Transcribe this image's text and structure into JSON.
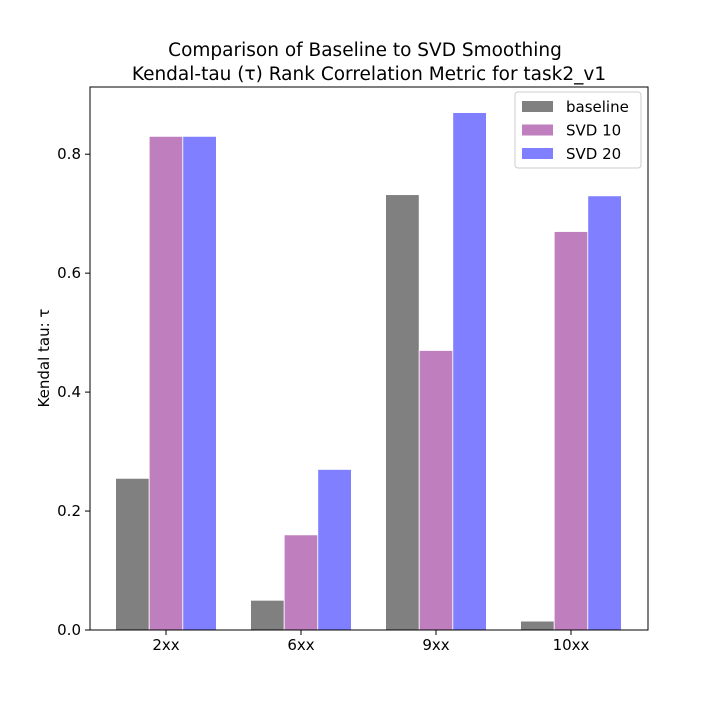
{
  "chart_data": {
    "type": "bar",
    "title_line1": "Comparison of Baseline to SVD Smoothing",
    "title_line2": "Kendal-tau (τ) Rank Correlation Metric for task2_v1",
    "xlabel": "",
    "ylabel": "Kendal tau: τ",
    "categories": [
      "2xx",
      "6xx",
      "9xx",
      "10xx"
    ],
    "ylim": [
      0,
      0.913
    ],
    "yticks": [
      "0.0",
      "0.2",
      "0.4",
      "0.6",
      "0.8"
    ],
    "grid": false,
    "legend_position": "top-right",
    "series": [
      {
        "name": "baseline",
        "color": "#808080",
        "values": [
          0.255,
          0.05,
          0.732,
          0.015
        ]
      },
      {
        "name": "SVD 10",
        "color": "#bf7fbf",
        "values": [
          0.83,
          0.16,
          0.47,
          0.67
        ]
      },
      {
        "name": "SVD 20",
        "color": "#7f7fff",
        "values": [
          0.83,
          0.27,
          0.87,
          0.73
        ]
      }
    ]
  }
}
